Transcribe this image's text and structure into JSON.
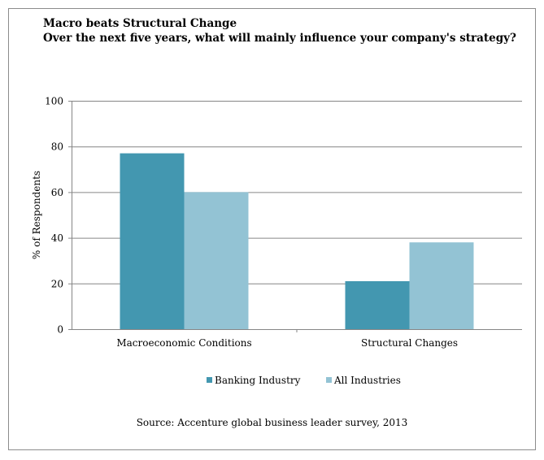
{
  "chart_data": {
    "type": "bar",
    "title": "Macro beats Structural Change",
    "subtitle": "Over the next five years, what will mainly influence your company's strategy?",
    "xlabel": "",
    "ylabel": "% of Respondents",
    "ylim": [
      0,
      100
    ],
    "yticks": [
      0,
      20,
      40,
      60,
      80,
      100
    ],
    "grid": true,
    "legend_position": "bottom",
    "categories": [
      "Macroeconomic Conditions",
      "Structural Changes"
    ],
    "series": [
      {
        "name": "Banking Industry",
        "values": [
          77,
          21
        ],
        "color": "#4397b0"
      },
      {
        "name": "All Industries",
        "values": [
          60,
          38
        ],
        "color": "#93c3d4"
      }
    ],
    "source": "Source: Accenture global business leader survey, 2013"
  }
}
